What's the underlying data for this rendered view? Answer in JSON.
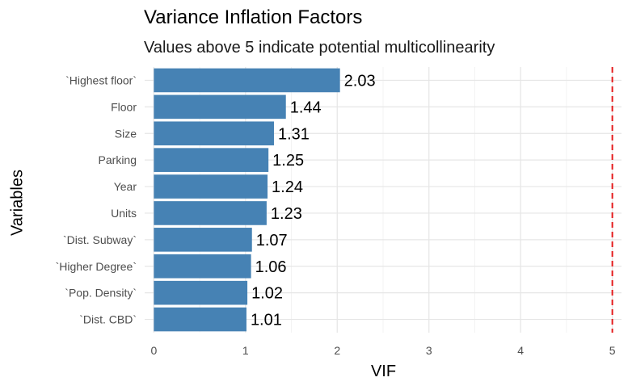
{
  "chart_data": {
    "type": "bar",
    "orientation": "horizontal",
    "title": "Variance Inflation Factors",
    "subtitle": "Values above 5 indicate potential multicollinearity",
    "xlabel": "VIF",
    "ylabel": "Variables",
    "categories": [
      "`Highest floor`",
      "Floor",
      "Size",
      "Parking",
      "Year",
      "Units",
      "`Dist. Subway`",
      "`Higher Degree`",
      "`Pop. Density`",
      "`Dist. CBD`"
    ],
    "values": [
      2.03,
      1.44,
      1.31,
      1.25,
      1.24,
      1.23,
      1.07,
      1.06,
      1.02,
      1.01
    ],
    "data_labels": [
      "2.03",
      "1.44",
      "1.31",
      "1.25",
      "1.24",
      "1.23",
      "1.07",
      "1.06",
      "1.02",
      "1.01"
    ],
    "xlim": [
      -0.1,
      5.1
    ],
    "xticks": [
      0,
      1,
      2,
      3,
      4,
      5
    ],
    "xtick_labels": [
      "0",
      "1",
      "2",
      "3",
      "4",
      "5"
    ],
    "reference_line": {
      "x": 5,
      "style": "dashed",
      "color": "#e41a1c"
    },
    "bar_color": "#4682b4",
    "grid": true,
    "legend": "none"
  }
}
